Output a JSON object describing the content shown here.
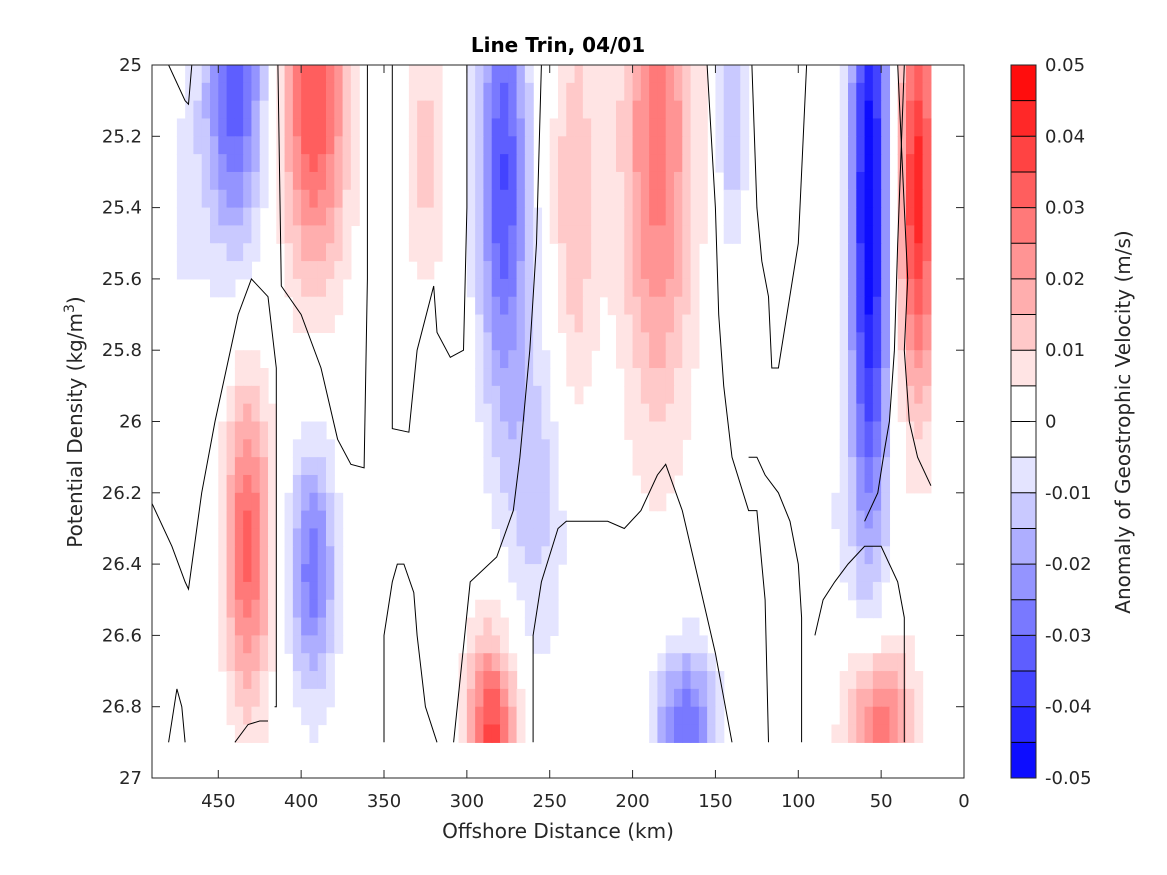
{
  "chart_data": {
    "type": "heatmap",
    "subtype": "filled-contour",
    "title": "Line Trin, 04/01",
    "xlabel": "Offshore Distance (km)",
    "ylabel_main": "Potential Density (kg/m",
    "ylabel_sup": "3",
    "ylabel_end": ")",
    "colorbar_label": "Anomaly of Geostrophic Velocity (m/s)",
    "colormap": {
      "negative": "#0000ff",
      "zero": "#ffffff",
      "positive": "#ff0000"
    },
    "xlim": [
      490,
      0
    ],
    "ylim": [
      25,
      27
    ],
    "xticks": [
      {
        "value": 450,
        "label": "450"
      },
      {
        "value": 400,
        "label": "400"
      },
      {
        "value": 350,
        "label": "350"
      },
      {
        "value": 300,
        "label": "300"
      },
      {
        "value": 250,
        "label": "250"
      },
      {
        "value": 200,
        "label": "200"
      },
      {
        "value": 150,
        "label": "150"
      },
      {
        "value": 100,
        "label": "100"
      },
      {
        "value": 50,
        "label": "50"
      },
      {
        "value": 0,
        "label": "0"
      }
    ],
    "yticks": [
      {
        "value": 25,
        "label": "25"
      },
      {
        "value": 25.2,
        "label": "25.2"
      },
      {
        "value": 25.4,
        "label": "25.4"
      },
      {
        "value": 25.6,
        "label": "25.6"
      },
      {
        "value": 25.8,
        "label": "25.8"
      },
      {
        "value": 26,
        "label": "26"
      },
      {
        "value": 26.2,
        "label": "26.2"
      },
      {
        "value": 26.4,
        "label": "26.4"
      },
      {
        "value": 26.6,
        "label": "26.6"
      },
      {
        "value": 26.8,
        "label": "26.8"
      },
      {
        "value": 27,
        "label": "27"
      }
    ],
    "colorbar_range": [
      -0.05,
      0.05
    ],
    "colorbar_levels": 20,
    "colorbar_ticks": [
      {
        "value": 0.05,
        "label": "0.05"
      },
      {
        "value": 0.04,
        "label": "0.04"
      },
      {
        "value": 0.03,
        "label": "0.03"
      },
      {
        "value": 0.02,
        "label": "0.02"
      },
      {
        "value": 0.01,
        "label": "0.01"
      },
      {
        "value": 0,
        "label": "0"
      },
      {
        "value": -0.01,
        "label": "-0.01"
      },
      {
        "value": -0.02,
        "label": "-0.02"
      },
      {
        "value": -0.03,
        "label": "-0.03"
      },
      {
        "value": -0.04,
        "label": "-0.04"
      },
      {
        "value": -0.05,
        "label": "-0.05"
      }
    ],
    "data_extent": {
      "x": [
        480,
        20
      ],
      "y": [
        25,
        26.9
      ]
    },
    "features": [
      {
        "x": 440,
        "y": 25.05,
        "amp": -0.035,
        "sx": 18,
        "sy": 0.45
      },
      {
        "x": 392,
        "y": 25.1,
        "amp": 0.035,
        "sx": 20,
        "sy": 0.5
      },
      {
        "x": 325,
        "y": 25.25,
        "amp": 0.012,
        "sx": 12,
        "sy": 0.4
      },
      {
        "x": 278,
        "y": 25.3,
        "amp": -0.035,
        "sx": 15,
        "sy": 0.65
      },
      {
        "x": 235,
        "y": 25.4,
        "amp": 0.015,
        "sx": 14,
        "sy": 0.6
      },
      {
        "x": 185,
        "y": 25.2,
        "amp": 0.028,
        "sx": 22,
        "sy": 0.8
      },
      {
        "x": 140,
        "y": 25.1,
        "amp": -0.016,
        "sx": 9,
        "sy": 0.4
      },
      {
        "x": 57,
        "y": 25.4,
        "amp": -0.05,
        "sx": 12,
        "sy": 0.95
      },
      {
        "x": 28,
        "y": 25.35,
        "amp": 0.042,
        "sx": 12,
        "sy": 0.6
      },
      {
        "x": 470,
        "y": 25.4,
        "amp": -0.006,
        "sx": 15,
        "sy": 0.4
      },
      {
        "x": 432,
        "y": 26.35,
        "amp": 0.032,
        "sx": 14,
        "sy": 0.45
      },
      {
        "x": 393,
        "y": 26.42,
        "amp": -0.028,
        "sx": 14,
        "sy": 0.35
      },
      {
        "x": 285,
        "y": 26.9,
        "amp": 0.038,
        "sx": 15,
        "sy": 0.3
      },
      {
        "x": 258,
        "y": 26.2,
        "amp": -0.012,
        "sx": 20,
        "sy": 0.5
      },
      {
        "x": 168,
        "y": 26.85,
        "amp": -0.03,
        "sx": 18,
        "sy": 0.22
      },
      {
        "x": 52,
        "y": 26.85,
        "amp": 0.03,
        "sx": 20,
        "sy": 0.25
      },
      {
        "x": 90,
        "y": 26.3,
        "amp": -0.005,
        "sx": 25,
        "sy": 0.4
      }
    ],
    "zero_contours": [
      [
        [
          480,
          25
        ],
        [
          470,
          25.1
        ],
        [
          468,
          25.11
        ],
        [
          466,
          25
        ]
      ],
      [
        [
          414,
          25
        ],
        [
          412,
          25.62
        ],
        [
          400,
          25.7
        ],
        [
          388,
          25.85
        ],
        [
          378,
          26.05
        ],
        [
          370,
          26.12
        ],
        [
          362,
          26.13
        ],
        [
          360,
          25.6
        ],
        [
          360,
          25
        ]
      ],
      [
        [
          345,
          25
        ],
        [
          345,
          26.02
        ],
        [
          335,
          26.03
        ],
        [
          330,
          25.8
        ],
        [
          320,
          25.62
        ],
        [
          318,
          25.75
        ],
        [
          310,
          25.82
        ],
        [
          302,
          25.8
        ],
        [
          300,
          25.4
        ],
        [
          300,
          25
        ]
      ],
      [
        [
          255,
          25
        ],
        [
          258,
          25.5
        ],
        [
          262,
          25.8
        ],
        [
          268,
          26.1
        ],
        [
          272,
          26.25
        ],
        [
          282,
          26.38
        ],
        [
          298,
          26.45
        ],
        [
          308,
          26.9
        ]
      ],
      [
        [
          260,
          26.9
        ],
        [
          260,
          26.6
        ],
        [
          255,
          26.45
        ],
        [
          245,
          26.3
        ],
        [
          240,
          26.28
        ],
        [
          225,
          26.28
        ],
        [
          215,
          26.28
        ],
        [
          205,
          26.3
        ],
        [
          195,
          26.25
        ],
        [
          185,
          26.15
        ],
        [
          180,
          26.12
        ],
        [
          170,
          26.25
        ],
        [
          160,
          26.45
        ],
        [
          150,
          26.65
        ],
        [
          140,
          26.9
        ]
      ],
      [
        [
          155,
          25
        ],
        [
          150,
          25.4
        ],
        [
          148,
          25.7
        ],
        [
          145,
          25.9
        ],
        [
          140,
          26.1
        ],
        [
          130,
          26.25
        ],
        [
          125,
          26.25
        ],
        [
          122,
          26.4
        ],
        [
          120,
          26.5
        ],
        [
          118,
          26.9
        ]
      ],
      [
        [
          95,
          25
        ],
        [
          100,
          25.5
        ],
        [
          112,
          25.85
        ],
        [
          116,
          25.85
        ],
        [
          118,
          25.65
        ],
        [
          122,
          25.55
        ],
        [
          125,
          25.4
        ],
        [
          128,
          25
        ],
        [
          155,
          25
        ]
      ],
      [
        [
          98,
          26.9
        ],
        [
          98,
          26.55
        ],
        [
          100,
          26.4
        ],
        [
          105,
          26.28
        ],
        [
          112,
          26.2
        ],
        [
          120,
          26.15
        ],
        [
          125,
          26.1
        ],
        [
          130,
          26.1
        ]
      ],
      [
        [
          36,
          26.9
        ],
        [
          36,
          26.55
        ],
        [
          40,
          26.45
        ],
        [
          50,
          26.35
        ],
        [
          60,
          26.35
        ],
        [
          70,
          26.4
        ],
        [
          78,
          26.45
        ],
        [
          85,
          26.5
        ],
        [
          90,
          26.6
        ]
      ],
      [
        [
          36,
          25
        ],
        [
          40,
          25.5
        ],
        [
          42,
          25.8
        ],
        [
          45,
          26
        ],
        [
          48,
          26.08
        ],
        [
          52,
          26.2
        ],
        [
          60,
          26.28
        ]
      ],
      [
        [
          20,
          26.18
        ],
        [
          28,
          26.1
        ],
        [
          33,
          26
        ],
        [
          36,
          25.8
        ],
        [
          34,
          25.6
        ],
        [
          36,
          25.4
        ],
        [
          38,
          25.2
        ],
        [
          40,
          25
        ]
      ],
      [
        [
          490,
          26.23
        ],
        [
          478,
          26.35
        ],
        [
          470,
          26.45
        ],
        [
          468,
          26.47
        ],
        [
          460,
          26.2
        ],
        [
          452,
          26
        ],
        [
          445,
          25.85
        ],
        [
          438,
          25.7
        ],
        [
          430,
          25.6
        ],
        [
          420,
          25.65
        ],
        [
          415,
          25.85
        ],
        [
          415,
          26.0
        ],
        [
          415,
          26.5
        ],
        [
          415,
          26.8
        ],
        [
          416,
          26.8
        ]
      ],
      [
        [
          350,
          26.9
        ],
        [
          350,
          26.6
        ],
        [
          345,
          26.45
        ],
        [
          342,
          26.4
        ],
        [
          338,
          26.4
        ],
        [
          332,
          26.48
        ],
        [
          330,
          26.6
        ],
        [
          325,
          26.8
        ],
        [
          318,
          26.9
        ]
      ],
      [
        [
          480,
          26.9
        ],
        [
          475,
          26.75
        ],
        [
          472,
          26.8
        ],
        [
          470,
          26.9
        ]
      ],
      [
        [
          440,
          26.9
        ],
        [
          432,
          26.85
        ],
        [
          425,
          26.84
        ],
        [
          420,
          26.84
        ]
      ]
    ]
  }
}
